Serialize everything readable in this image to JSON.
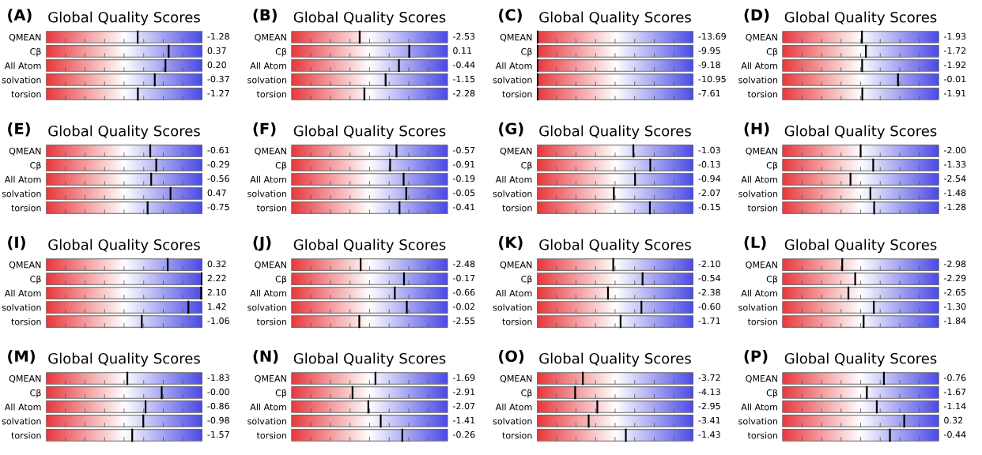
{
  "chart_data": [
    {
      "type": "other",
      "title": "Global Quality Scores",
      "annotations": [
        "(A)"
      ],
      "categories": [
        "QMEAN",
        "Cβ",
        "All Atom",
        "solvation",
        "torsion"
      ],
      "values": [
        -1.28,
        0.37,
        0.2,
        -0.37,
        -1.27
      ],
      "value_labels": [
        "-1.28",
        "0.37",
        "0.20",
        "-0.37",
        "-1.27"
      ]
    },
    {
      "type": "other",
      "title": "Global Quality Scores",
      "annotations": [
        "(B)"
      ],
      "categories": [
        "QMEAN",
        "Cβ",
        "All Atom",
        "solvation",
        "torsion"
      ],
      "values": [
        -2.53,
        0.11,
        -0.44,
        -1.15,
        -2.28
      ],
      "value_labels": [
        "-2.53",
        "0.11",
        "-0.44",
        "-1.15",
        "-2.28"
      ]
    },
    {
      "type": "other",
      "title": "Global Quality Scores",
      "annotations": [
        "(C)"
      ],
      "categories": [
        "QMEAN",
        "Cβ",
        "All Atom",
        "solvation",
        "torsion"
      ],
      "values": [
        -13.69,
        -9.95,
        -9.18,
        -10.95,
        -7.61
      ],
      "value_labels": [
        "-13.69",
        "-9.95",
        "-9.18",
        "-10.95",
        "-7.61"
      ]
    },
    {
      "type": "other",
      "title": "Global Quality Scores",
      "annotations": [
        "(D)"
      ],
      "categories": [
        "QMEAN",
        "Cβ",
        "All Atom",
        "solvation",
        "torsion"
      ],
      "values": [
        -1.93,
        -1.72,
        -1.92,
        -0.01,
        -1.91
      ],
      "value_labels": [
        "-1.93",
        "-1.72",
        "-1.92",
        "-0.01",
        "-1.91"
      ]
    },
    {
      "type": "other",
      "title": "Global Quality Scores",
      "annotations": [
        "(E)"
      ],
      "categories": [
        "QMEAN",
        "Cβ",
        "All Atom",
        "solvation",
        "torsion"
      ],
      "values": [
        -0.61,
        -0.29,
        -0.56,
        0.47,
        -0.75
      ],
      "value_labels": [
        "-0.61",
        "-0.29",
        "-0.56",
        "0.47",
        "-0.75"
      ]
    },
    {
      "type": "other",
      "title": "Global Quality Scores",
      "annotations": [
        "(F)"
      ],
      "categories": [
        "QMEAN",
        "Cβ",
        "All Atom",
        "solvation",
        "torsion"
      ],
      "values": [
        -0.57,
        -0.91,
        -0.19,
        -0.05,
        -0.41
      ],
      "value_labels": [
        "-0.57",
        "-0.91",
        "-0.19",
        "-0.05",
        "-0.41"
      ]
    },
    {
      "type": "other",
      "title": "Global Quality Scores",
      "annotations": [
        "(G)"
      ],
      "categories": [
        "QMEAN",
        "Cβ",
        "All Atom",
        "solvation",
        "torsion"
      ],
      "values": [
        -1.03,
        -0.13,
        -0.94,
        -2.07,
        -0.15
      ],
      "value_labels": [
        "-1.03",
        "-0.13",
        "-0.94",
        "-2.07",
        "-0.15"
      ]
    },
    {
      "type": "other",
      "title": "Global Quality Scores",
      "annotations": [
        "(H)"
      ],
      "categories": [
        "QMEAN",
        "Cβ",
        "All Atom",
        "solvation",
        "torsion"
      ],
      "values": [
        -2.0,
        -1.33,
        -2.54,
        -1.48,
        -1.28
      ],
      "value_labels": [
        "-2.00",
        "-1.33",
        "-2.54",
        "-1.48",
        "-1.28"
      ]
    },
    {
      "type": "other",
      "title": "Global Quality Scores",
      "annotations": [
        "(I)"
      ],
      "categories": [
        "QMEAN",
        "Cβ",
        "All Atom",
        "solvation",
        "torsion"
      ],
      "values": [
        0.32,
        2.22,
        2.1,
        1.42,
        -1.06
      ],
      "value_labels": [
        "0.32",
        "2.22",
        "2.10",
        "1.42",
        "-1.06"
      ]
    },
    {
      "type": "other",
      "title": "Global Quality Scores",
      "annotations": [
        "(J)"
      ],
      "categories": [
        "QMEAN",
        "Cβ",
        "All Atom",
        "solvation",
        "torsion"
      ],
      "values": [
        -2.48,
        -0.17,
        -0.66,
        -0.02,
        -2.55
      ],
      "value_labels": [
        "-2.48",
        "-0.17",
        "-0.66",
        "-0.02",
        "-2.55"
      ]
    },
    {
      "type": "other",
      "title": "Global Quality Scores",
      "annotations": [
        "(K)"
      ],
      "categories": [
        "QMEAN",
        "Cβ",
        "All Atom",
        "solvation",
        "torsion"
      ],
      "values": [
        -2.1,
        -0.54,
        -2.38,
        -0.6,
        -1.71
      ],
      "value_labels": [
        "-2.10",
        "-0.54",
        "-2.38",
        "-0.60",
        "-1.71"
      ]
    },
    {
      "type": "other",
      "title": "Global Quality Scores",
      "annotations": [
        "(L)"
      ],
      "categories": [
        "QMEAN",
        "Cβ",
        "All Atom",
        "solvation",
        "torsion"
      ],
      "values": [
        -2.98,
        -2.29,
        -2.65,
        -1.3,
        -1.84
      ],
      "value_labels": [
        "-2.98",
        "-2.29",
        "-2.65",
        "-1.30",
        "-1.84"
      ]
    },
    {
      "type": "other",
      "title": "Global Quality Scores",
      "annotations": [
        "(M)"
      ],
      "categories": [
        "QMEAN",
        "Cβ",
        "All Atom",
        "solvation",
        "torsion"
      ],
      "values": [
        -1.83,
        0.0,
        -0.86,
        -0.98,
        -1.57
      ],
      "value_labels": [
        "-1.83",
        "-0.00",
        "-0.86",
        "-0.98",
        "-1.57"
      ]
    },
    {
      "type": "other",
      "title": "Global Quality Scores",
      "annotations": [
        "(N)"
      ],
      "categories": [
        "QMEAN",
        "Cβ",
        "All Atom",
        "solvation",
        "torsion"
      ],
      "values": [
        -1.69,
        -2.91,
        -2.07,
        -1.41,
        -0.26
      ],
      "value_labels": [
        "-1.69",
        "-2.91",
        "-2.07",
        "-1.41",
        "-0.26"
      ]
    },
    {
      "type": "other",
      "title": "Global Quality Scores",
      "annotations": [
        "(O)"
      ],
      "categories": [
        "QMEAN",
        "Cβ",
        "All Atom",
        "solvation",
        "torsion"
      ],
      "values": [
        -3.72,
        -4.13,
        -2.95,
        -3.41,
        -1.43
      ],
      "value_labels": [
        "-3.72",
        "-4.13",
        "-2.95",
        "-3.41",
        "-1.43"
      ]
    },
    {
      "type": "other",
      "title": "Global Quality Scores",
      "annotations": [
        "(P)"
      ],
      "categories": [
        "QMEAN",
        "Cβ",
        "All Atom",
        "solvation",
        "torsion"
      ],
      "values": [
        -0.76,
        -1.67,
        -1.14,
        0.32,
        -0.44
      ],
      "value_labels": [
        "-0.76",
        "-1.67",
        "-1.14",
        "0.32",
        "-0.44"
      ]
    }
  ]
}
